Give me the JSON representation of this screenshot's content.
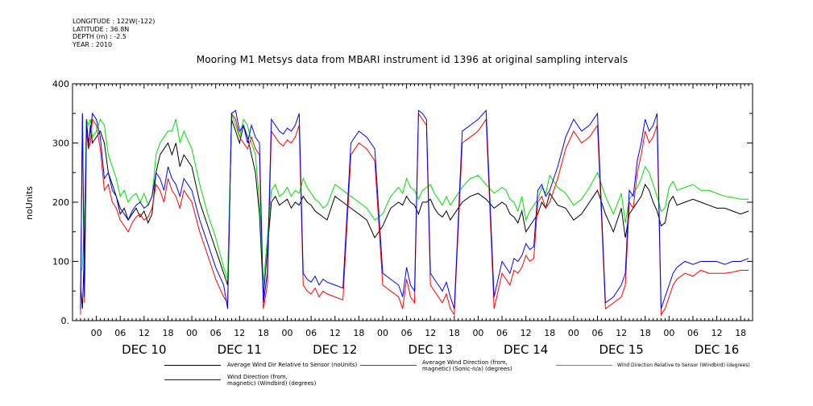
{
  "meta": {
    "longitude": "LONGITUDE : 122W(-122)",
    "latitude": "LATITUDE : 36.8N",
    "depth": "DEPTH (m) : -2.5",
    "year": "YEAR : 2010"
  },
  "chart_data": {
    "type": "line",
    "title": "Mooring M1 Metsys data from MBARI instrument id 1396 at original sampling intervals",
    "ylabel": "noUnits",
    "xlabel": "",
    "ylim": [
      0,
      400
    ],
    "yticks": [
      "0.",
      "100",
      "200",
      "300",
      "400"
    ],
    "xlim": [
      -6,
      165
    ],
    "hour_ticks": [
      "00",
      "06",
      "12",
      "18"
    ],
    "day_labels": [
      "DEC 10",
      "DEC 11",
      "DEC 12",
      "DEC 13",
      "DEC 14",
      "DEC 15",
      "DEC 16"
    ],
    "grid": false,
    "legend_position": "bottom",
    "series": [
      {
        "name": "Average Wind Dir Relative to Sensor (noUnits)",
        "color": "#000000",
        "x": [
          -4,
          -3.5,
          -3,
          -2.5,
          -2,
          -1.5,
          -1,
          0,
          1,
          2,
          3,
          4,
          5,
          6,
          7,
          8,
          9,
          10,
          11,
          12,
          13,
          14,
          15,
          16,
          17,
          18,
          19,
          20,
          21,
          22,
          24,
          26,
          28,
          30,
          32,
          33,
          34,
          35,
          36,
          37,
          38,
          39,
          40,
          41,
          42,
          43,
          44,
          45,
          46,
          47,
          48,
          49,
          50,
          51,
          52,
          53,
          54,
          55,
          56,
          57,
          58,
          60,
          62,
          64,
          66,
          68,
          70,
          72,
          74,
          76,
          77,
          78,
          79,
          80,
          81,
          82,
          83,
          84,
          85,
          86,
          87,
          88,
          89,
          90,
          92,
          94,
          96,
          98,
          100,
          102,
          103,
          104,
          105,
          106,
          107,
          108,
          109,
          110,
          111,
          112,
          113,
          114,
          115,
          116,
          118,
          120,
          122,
          124,
          126,
          128,
          130,
          132,
          133,
          134,
          135,
          136,
          137,
          138,
          139,
          140,
          141,
          142,
          143,
          144,
          145,
          146,
          148,
          150,
          152,
          154,
          156,
          158,
          160,
          162,
          164
        ],
        "y": [
          60,
          20,
          120,
          330,
          290,
          330,
          300,
          310,
          320,
          300,
          250,
          230,
          210,
          180,
          190,
          170,
          180,
          190,
          175,
          185,
          165,
          180,
          250,
          280,
          290,
          300,
          280,
          300,
          260,
          280,
          260,
          200,
          160,
          120,
          80,
          60,
          340,
          320,
          300,
          330,
          310,
          280,
          250,
          180,
          40,
          120,
          200,
          210,
          195,
          200,
          205,
          190,
          200,
          195,
          210,
          200,
          195,
          185,
          180,
          175,
          170,
          210,
          200,
          190,
          180,
          170,
          140,
          160,
          190,
          200,
          195,
          210,
          200,
          195,
          180,
          200,
          200,
          205,
          190,
          180,
          175,
          185,
          170,
          180,
          200,
          210,
          215,
          205,
          190,
          200,
          195,
          180,
          175,
          165,
          185,
          150,
          160,
          170,
          180,
          200,
          190,
          215,
          205,
          195,
          190,
          170,
          180,
          200,
          220,
          180,
          150,
          190,
          140,
          180,
          190,
          200,
          210,
          230,
          220,
          200,
          185,
          160,
          165,
          200,
          210,
          195,
          200,
          205,
          200,
          195,
          190,
          190,
          185,
          180,
          185
        ]
      },
      {
        "name": "Average Wind Direction (from, magnetic) (Sonic-n/a) (degrees)",
        "color": "#ff0000",
        "x": [
          -4,
          -3.5,
          -3,
          -2.5,
          -2,
          -1.5,
          -1,
          0,
          1,
          2,
          3,
          4,
          5,
          6,
          7,
          8,
          9,
          10,
          11,
          12,
          13,
          14,
          15,
          16,
          17,
          18,
          19,
          20,
          21,
          22,
          24,
          26,
          28,
          30,
          32,
          33,
          34,
          35,
          36,
          37,
          38,
          39,
          40,
          41,
          42,
          43,
          44,
          45,
          46,
          47,
          48,
          49,
          50,
          51,
          52,
          53,
          54,
          55,
          56,
          57,
          58,
          60,
          62,
          64,
          66,
          68,
          70,
          72,
          74,
          76,
          77,
          78,
          79,
          80,
          81,
          82,
          83,
          84,
          85,
          86,
          87,
          88,
          89,
          90,
          92,
          94,
          96,
          98,
          100,
          102,
          103,
          104,
          105,
          106,
          107,
          108,
          109,
          110,
          111,
          112,
          113,
          114,
          115,
          116,
          118,
          120,
          122,
          124,
          126,
          128,
          130,
          132,
          133,
          134,
          135,
          136,
          137,
          138,
          139,
          140,
          141,
          142,
          143,
          144,
          145,
          146,
          148,
          150,
          152,
          154,
          156,
          158,
          160,
          162,
          164
        ],
        "y": [
          10,
          350,
          30,
          320,
          290,
          300,
          340,
          330,
          290,
          220,
          230,
          200,
          190,
          170,
          160,
          150,
          165,
          175,
          180,
          170,
          175,
          190,
          230,
          220,
          200,
          240,
          220,
          210,
          190,
          220,
          200,
          150,
          110,
          70,
          40,
          30,
          350,
          340,
          310,
          300,
          290,
          310,
          290,
          280,
          20,
          60,
          320,
          310,
          300,
          295,
          305,
          300,
          310,
          330,
          60,
          50,
          45,
          55,
          40,
          50,
          45,
          40,
          35,
          280,
          300,
          290,
          270,
          60,
          50,
          40,
          20,
          70,
          40,
          30,
          350,
          340,
          330,
          60,
          50,
          40,
          30,
          45,
          20,
          10,
          300,
          310,
          320,
          340,
          20,
          80,
          70,
          60,
          85,
          80,
          90,
          110,
          100,
          105,
          200,
          210,
          190,
          200,
          220,
          240,
          290,
          320,
          300,
          310,
          330,
          20,
          30,
          40,
          60,
          200,
          190,
          250,
          280,
          320,
          300,
          310,
          330,
          10,
          20,
          40,
          60,
          70,
          80,
          75,
          85,
          80,
          80,
          80,
          82,
          85,
          85
        ]
      },
      {
        "name": "Wind Direction Relative to Sensor (Windbird) (degrees)",
        "color": "#00e000",
        "x": [
          -4,
          -3.5,
          -3,
          -2.5,
          -2,
          -1.5,
          -1,
          0,
          1,
          2,
          3,
          4,
          5,
          6,
          7,
          8,
          9,
          10,
          11,
          12,
          13,
          14,
          15,
          16,
          17,
          18,
          19,
          20,
          21,
          22,
          24,
          26,
          28,
          30,
          32,
          33,
          34,
          35,
          36,
          37,
          38,
          39,
          40,
          41,
          42,
          43,
          44,
          45,
          46,
          47,
          48,
          49,
          50,
          51,
          52,
          53,
          54,
          55,
          56,
          57,
          58,
          60,
          62,
          64,
          66,
          68,
          70,
          72,
          74,
          76,
          77,
          78,
          79,
          80,
          81,
          82,
          83,
          84,
          85,
          86,
          87,
          88,
          89,
          90,
          92,
          94,
          96,
          98,
          100,
          102,
          103,
          104,
          105,
          106,
          107,
          108,
          109,
          110,
          111,
          112,
          113,
          114,
          115,
          116,
          118,
          120,
          122,
          124,
          126,
          128,
          130,
          132,
          133,
          134,
          135,
          136,
          137,
          138,
          139,
          140,
          141,
          142,
          143,
          144,
          145,
          146,
          148,
          150,
          152,
          154,
          156,
          158,
          160,
          162,
          164
        ],
        "y": [
          80,
          90,
          180,
          340,
          330,
          340,
          310,
          320,
          340,
          330,
          280,
          260,
          240,
          210,
          220,
          200,
          210,
          215,
          200,
          215,
          195,
          210,
          280,
          300,
          310,
          320,
          320,
          340,
          300,
          320,
          290,
          230,
          180,
          140,
          90,
          70,
          350,
          330,
          310,
          340,
          330,
          300,
          280,
          200,
          60,
          140,
          220,
          230,
          210,
          215,
          225,
          210,
          220,
          215,
          240,
          225,
          215,
          205,
          200,
          190,
          195,
          230,
          220,
          210,
          200,
          190,
          170,
          180,
          210,
          225,
          215,
          240,
          225,
          220,
          205,
          220,
          225,
          230,
          215,
          205,
          195,
          210,
          195,
          205,
          225,
          240,
          245,
          230,
          215,
          225,
          220,
          205,
          200,
          185,
          210,
          170,
          185,
          195,
          205,
          225,
          215,
          245,
          235,
          225,
          215,
          195,
          205,
          225,
          250,
          210,
          180,
          215,
          165,
          205,
          215,
          225,
          240,
          260,
          250,
          230,
          210,
          185,
          190,
          225,
          235,
          220,
          225,
          230,
          220,
          220,
          215,
          210,
          208,
          205,
          205
        ]
      },
      {
        "name": "Wind Direction (from, magnetic) (Windbird) (degrees)",
        "color": "#0000ff",
        "x": [
          -4,
          -3.5,
          -3,
          -2.5,
          -2,
          -1.5,
          -1,
          0,
          1,
          2,
          3,
          4,
          5,
          6,
          7,
          8,
          9,
          10,
          11,
          12,
          13,
          14,
          15,
          16,
          17,
          18,
          19,
          20,
          21,
          22,
          24,
          26,
          28,
          30,
          32,
          33,
          34,
          35,
          36,
          37,
          38,
          39,
          40,
          41,
          42,
          43,
          44,
          45,
          46,
          47,
          48,
          49,
          50,
          51,
          52,
          53,
          54,
          55,
          56,
          57,
          58,
          60,
          62,
          64,
          66,
          68,
          70,
          72,
          74,
          76,
          77,
          78,
          79,
          80,
          81,
          82,
          83,
          84,
          85,
          86,
          87,
          88,
          89,
          90,
          92,
          94,
          96,
          98,
          100,
          102,
          103,
          104,
          105,
          106,
          107,
          108,
          109,
          110,
          111,
          112,
          113,
          114,
          115,
          116,
          118,
          120,
          122,
          124,
          126,
          128,
          130,
          132,
          133,
          134,
          135,
          136,
          137,
          138,
          139,
          140,
          141,
          142,
          143,
          144,
          145,
          146,
          148,
          150,
          152,
          154,
          156,
          158,
          160,
          162,
          164
        ],
        "y": [
          20,
          350,
          40,
          340,
          300,
          320,
          350,
          340,
          310,
          240,
          250,
          220,
          210,
          190,
          180,
          170,
          185,
          195,
          200,
          190,
          195,
          210,
          250,
          240,
          220,
          260,
          240,
          230,
          210,
          240,
          220,
          170,
          130,
          90,
          60,
          20,
          350,
          355,
          320,
          330,
          300,
          330,
          310,
          300,
          30,
          80,
          340,
          330,
          320,
          315,
          325,
          320,
          330,
          350,
          80,
          70,
          65,
          75,
          60,
          70,
          65,
          60,
          55,
          300,
          320,
          310,
          290,
          80,
          70,
          60,
          40,
          90,
          60,
          50,
          355,
          350,
          340,
          80,
          70,
          60,
          50,
          65,
          40,
          20,
          320,
          330,
          340,
          355,
          40,
          100,
          90,
          80,
          105,
          100,
          110,
          130,
          120,
          125,
          220,
          230,
          210,
          220,
          240,
          260,
          310,
          340,
          320,
          330,
          350,
          30,
          40,
          60,
          80,
          220,
          210,
          270,
          300,
          340,
          320,
          330,
          350,
          20,
          40,
          60,
          80,
          90,
          100,
          95,
          100,
          100,
          100,
          95,
          100,
          100,
          105
        ]
      }
    ]
  }
}
